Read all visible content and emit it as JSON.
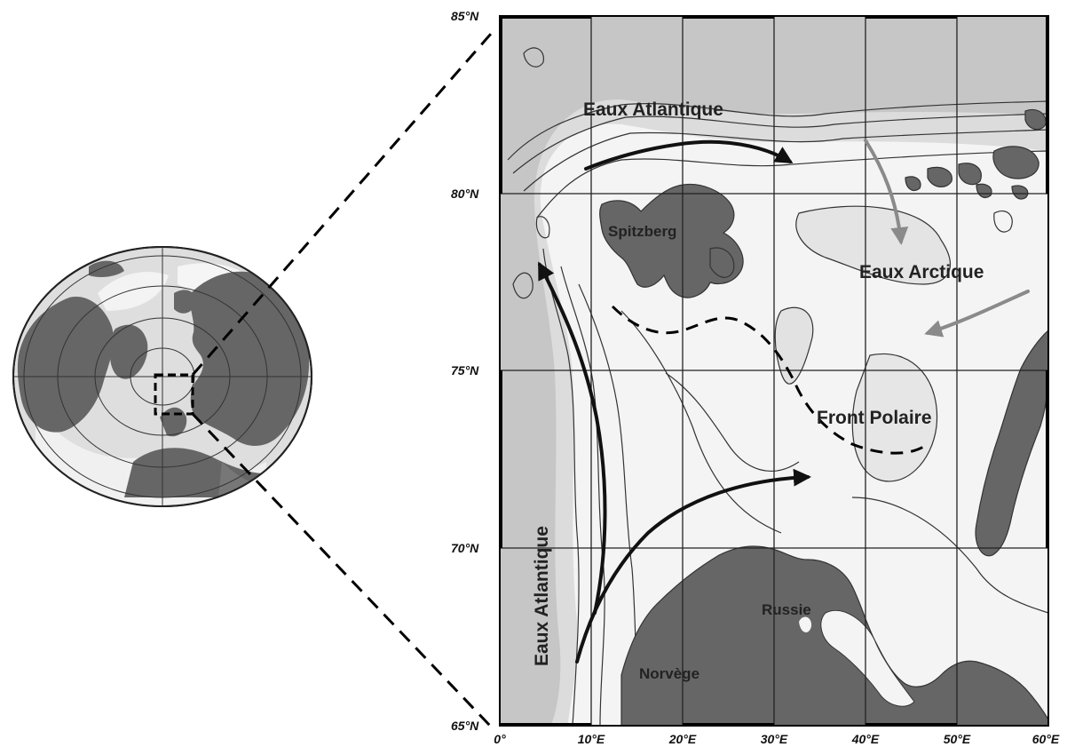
{
  "latitude_labels": [
    "85°N",
    "80°N",
    "75°N",
    "70°N",
    "65°N"
  ],
  "longitude_labels": [
    "0°",
    "10°E",
    "20°E",
    "30°E",
    "40°E",
    "50°E",
    "60°E"
  ],
  "region_labels": {
    "atlantic_north": "Eaux Atlantique",
    "atlantic_west": "Eaux Atlantique",
    "arctic": "Eaux Arctique",
    "spitzberg": "Spitzberg",
    "polar_front": "Front Polaire",
    "russia": "Russie",
    "norway": "Norvège"
  },
  "colors": {
    "land": "#666666",
    "ocean_light": "#f4f4f4",
    "ocean_mid": "#dedede",
    "ocean_dark": "#c6c6c6",
    "contour": "#333333",
    "atlantic_arrow": "#111111",
    "arctic_arrow": "#8a8a8a"
  },
  "map_extent": {
    "lon_min": 0,
    "lon_max": 60,
    "lat_min": 65,
    "lat_max": 85
  }
}
